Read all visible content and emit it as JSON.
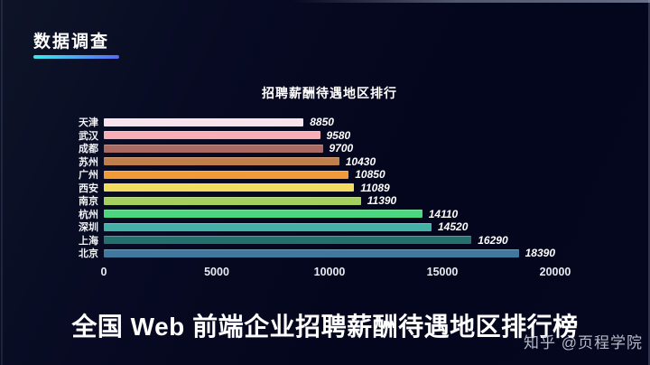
{
  "page": {
    "background_color": "#05071f"
  },
  "header": {
    "title": "数据调查",
    "underline_colors": [
      "#3ce9ee",
      "#5a68f0"
    ]
  },
  "chart_data": {
    "type": "bar",
    "orientation": "horizontal",
    "title": "招聘薪酬待遇地区排行",
    "categories": [
      "天津",
      "武汉",
      "成都",
      "苏州",
      "广州",
      "西安",
      "南京",
      "杭州",
      "深圳",
      "上海",
      "北京"
    ],
    "values": [
      8850,
      9580,
      9700,
      10430,
      10850,
      11089,
      11390,
      14110,
      14520,
      16290,
      18390
    ],
    "bar_colors": [
      "#f6e3ec",
      "#f8aeb6",
      "#a86a62",
      "#c07f4a",
      "#f09a38",
      "#f2dc5f",
      "#a5d05f",
      "#4bd67f",
      "#45b0a5",
      "#256f6c",
      "#41789e"
    ],
    "xlim": [
      0,
      20000
    ],
    "x_ticks": [
      "0",
      "5000",
      "10000",
      "15000",
      "20000"
    ],
    "grid": false,
    "legend": false,
    "value_labels_position": "right-of-bar"
  },
  "footer": {
    "title": "全国 Web 前端企业招聘薪酬待遇地区排行榜",
    "watermark": "知乎 @页程学院"
  }
}
